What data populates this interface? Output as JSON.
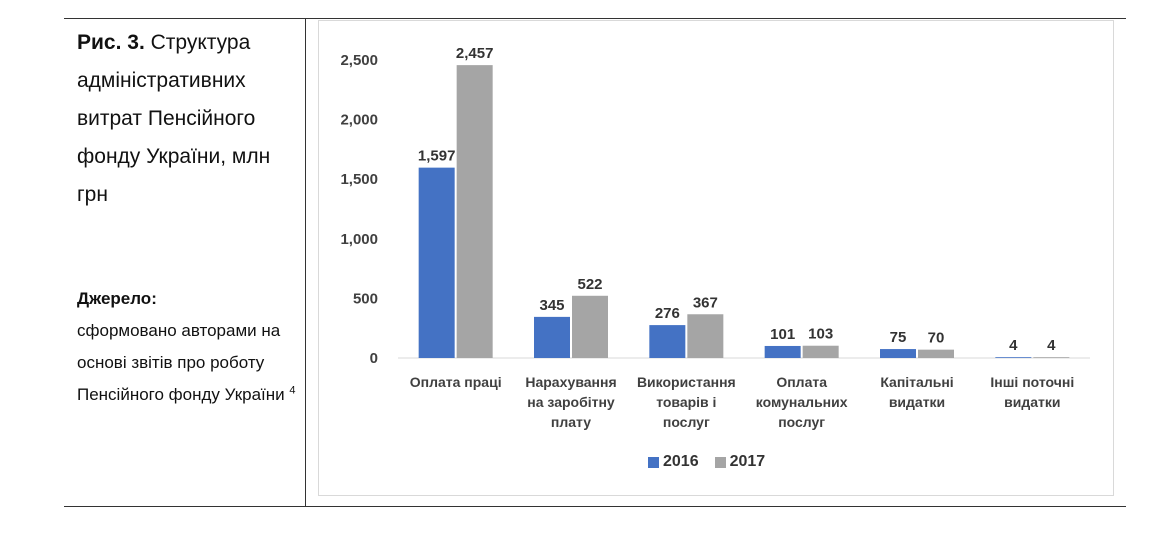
{
  "caption": {
    "lead": "Рис. 3.",
    "text": "Структура адміністративних витрат Пенсійного фонду України, млн грн"
  },
  "source": {
    "label": "Джерело:",
    "text": "сформовано авторами на основі звітів про роботу Пенсійного фонду України",
    "footnote": "4"
  },
  "colors": {
    "series_2016": "#4472C4",
    "series_2017": "#A5A5A5",
    "axis_text": "#404040",
    "axis_line": "#d9d9d9"
  },
  "chart_data": {
    "type": "bar",
    "categories": [
      [
        "Оплата праці"
      ],
      [
        "Нарахування",
        "на заробітну",
        "плату"
      ],
      [
        "Використання",
        "товарів і",
        "послуг"
      ],
      [
        "Оплата",
        "комунальних",
        "послуг"
      ],
      [
        "Капітальні",
        "видатки"
      ],
      [
        "Інші поточні",
        "видатки"
      ]
    ],
    "series": [
      {
        "name": "2016",
        "values": [
          1597,
          345,
          276,
          101,
          75,
          4
        ],
        "labels": [
          "1,597",
          "345",
          "276",
          "101",
          "75",
          "4"
        ]
      },
      {
        "name": "2017",
        "values": [
          2457,
          522,
          367,
          103,
          70,
          4
        ],
        "labels": [
          "2,457",
          "522",
          "367",
          "103",
          "70",
          "4"
        ]
      }
    ],
    "yticks": [
      0,
      500,
      1000,
      1500,
      2000,
      2500
    ],
    "ytick_labels": [
      "0",
      "500",
      "1,000",
      "1,500",
      "2,000",
      "2,500"
    ],
    "ylim": [
      0,
      2500
    ],
    "grid": false,
    "legend_position": "bottom"
  }
}
